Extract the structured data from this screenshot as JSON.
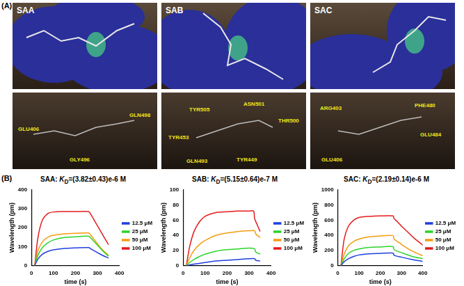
{
  "panel_labels": [
    "(A)",
    "(B)"
  ],
  "panel_a": [
    {
      "title": "SAA",
      "residues": [
        "GLU406",
        "GLN498",
        "GLY496"
      ]
    },
    {
      "title": "SAB",
      "residues": [
        "TYR505",
        "ASN501",
        "THR500",
        "TYR453",
        "GLN493",
        "TYR449"
      ]
    },
    {
      "title": "SAC",
      "residues": [
        "ARG403",
        "PHE480",
        "GLU484",
        "GLU406"
      ]
    }
  ],
  "chart_data": [
    {
      "type": "line",
      "title": {
        "prefix": "SAA: ",
        "symbol": "K",
        "subscript": "D",
        "value": "=(3.82±0.43)e-6 M"
      },
      "x_label": "time (s)",
      "y_label": "Wavelength (pm)",
      "xlim": [
        0,
        400
      ],
      "xticks": [
        0,
        100,
        200,
        300,
        400
      ],
      "ylim": [
        0,
        400
      ],
      "yticks": [
        0,
        100,
        200,
        300,
        400
      ],
      "grid": false,
      "legend": "right",
      "series": [
        {
          "name": "12.5 μM",
          "color": "#1f3fe0",
          "x": [
            15,
            30,
            50,
            75,
            100,
            150,
            200,
            260,
            270,
            290,
            310,
            330,
            350
          ],
          "values": [
            0,
            35,
            60,
            75,
            83,
            90,
            93,
            95,
            88,
            75,
            62,
            50,
            40
          ]
        },
        {
          "name": "25 μM",
          "color": "#2bd42b",
          "x": [
            15,
            30,
            50,
            75,
            100,
            150,
            200,
            260,
            270,
            290,
            310,
            330,
            350
          ],
          "values": [
            0,
            55,
            95,
            120,
            135,
            148,
            152,
            155,
            145,
            120,
            95,
            70,
            50
          ]
        },
        {
          "name": "50 μM",
          "color": "#f39c12",
          "x": [
            15,
            30,
            50,
            75,
            100,
            150,
            200,
            260,
            270,
            290,
            310,
            330,
            350
          ],
          "values": [
            0,
            80,
            125,
            150,
            160,
            168,
            170,
            172,
            160,
            130,
            100,
            75,
            55
          ]
        },
        {
          "name": "100 μM",
          "color": "#e41a1c",
          "x": [
            15,
            30,
            50,
            75,
            100,
            150,
            200,
            260,
            270,
            290,
            310,
            330,
            350
          ],
          "values": [
            0,
            150,
            240,
            275,
            283,
            285,
            285,
            285,
            270,
            230,
            190,
            150,
            110
          ]
        }
      ]
    },
    {
      "type": "line",
      "title": {
        "prefix": "SAB: ",
        "symbol": "K",
        "subscript": "D",
        "value": "=(5.15±0.64)e-7 M"
      },
      "x_label": "time (s)",
      "y_label": "Wavelength (pm)",
      "xlim": [
        0,
        400
      ],
      "xticks": [
        0,
        100,
        200,
        300,
        400
      ],
      "ylim": [
        0,
        100
      ],
      "yticks": [
        0,
        20,
        40,
        60,
        80,
        100
      ],
      "grid": false,
      "legend": "right",
      "series": [
        {
          "name": "12.5 μM",
          "color": "#1f3fe0",
          "x": [
            15,
            50,
            100,
            150,
            200,
            250,
            300,
            325,
            330,
            350
          ],
          "values": [
            0,
            2,
            4,
            6,
            7,
            8,
            9,
            9,
            7,
            6
          ]
        },
        {
          "name": "25 μM",
          "color": "#2bd42b",
          "x": [
            15,
            30,
            50,
            75,
            100,
            150,
            200,
            250,
            300,
            325,
            330,
            350
          ],
          "values": [
            0,
            4,
            8,
            12,
            15,
            19,
            21,
            22,
            23,
            22,
            18,
            15
          ]
        },
        {
          "name": "50 μM",
          "color": "#f39c12",
          "x": [
            15,
            30,
            50,
            75,
            100,
            150,
            200,
            250,
            300,
            325,
            330,
            350
          ],
          "values": [
            0,
            10,
            20,
            28,
            33,
            40,
            43,
            45,
            46,
            46,
            42,
            37
          ]
        },
        {
          "name": "100 μM",
          "color": "#e41a1c",
          "x": [
            15,
            30,
            50,
            75,
            100,
            150,
            200,
            250,
            300,
            320,
            325,
            335,
            350
          ],
          "values": [
            0,
            25,
            45,
            58,
            65,
            70,
            71,
            72,
            72,
            72,
            62,
            55,
            45
          ]
        }
      ]
    },
    {
      "type": "line",
      "title": {
        "prefix": "SAC: ",
        "symbol": "K",
        "subscript": "D",
        "value": "=(2.19±0.14)e-6 M"
      },
      "x_label": "time (s)",
      "y_label": "Wavelength (pm)",
      "xlim": [
        0,
        400
      ],
      "xticks": [
        0,
        100,
        200,
        300,
        400
      ],
      "ylim": [
        0,
        1000
      ],
      "yticks": [
        0,
        200,
        400,
        600,
        800,
        1000
      ],
      "grid": false,
      "legend": "right",
      "series": [
        {
          "name": "12.5 μM",
          "color": "#1f3fe0",
          "x": [
            15,
            30,
            50,
            75,
            100,
            150,
            200,
            260,
            265,
            300,
            350,
            400
          ],
          "values": [
            0,
            50,
            90,
            120,
            140,
            155,
            160,
            165,
            135,
            110,
            80,
            55
          ]
        },
        {
          "name": "25 μM",
          "color": "#2bd42b",
          "x": [
            15,
            30,
            50,
            75,
            100,
            150,
            200,
            260,
            265,
            300,
            350,
            400
          ],
          "values": [
            0,
            90,
            160,
            200,
            220,
            240,
            245,
            250,
            210,
            170,
            120,
            90
          ]
        },
        {
          "name": "50 μM",
          "color": "#f39c12",
          "x": [
            15,
            30,
            50,
            75,
            100,
            150,
            200,
            260,
            265,
            290,
            320,
            350,
            400
          ],
          "values": [
            0,
            150,
            260,
            320,
            350,
            380,
            390,
            395,
            350,
            300,
            240,
            190,
            130
          ]
        },
        {
          "name": "100 μM",
          "color": "#e41a1c",
          "x": [
            15,
            30,
            50,
            75,
            100,
            150,
            200,
            260,
            265,
            280,
            300,
            330,
            360,
            400
          ],
          "values": [
            0,
            350,
            520,
            600,
            635,
            650,
            655,
            655,
            620,
            580,
            520,
            440,
            360,
            270
          ]
        }
      ]
    }
  ]
}
